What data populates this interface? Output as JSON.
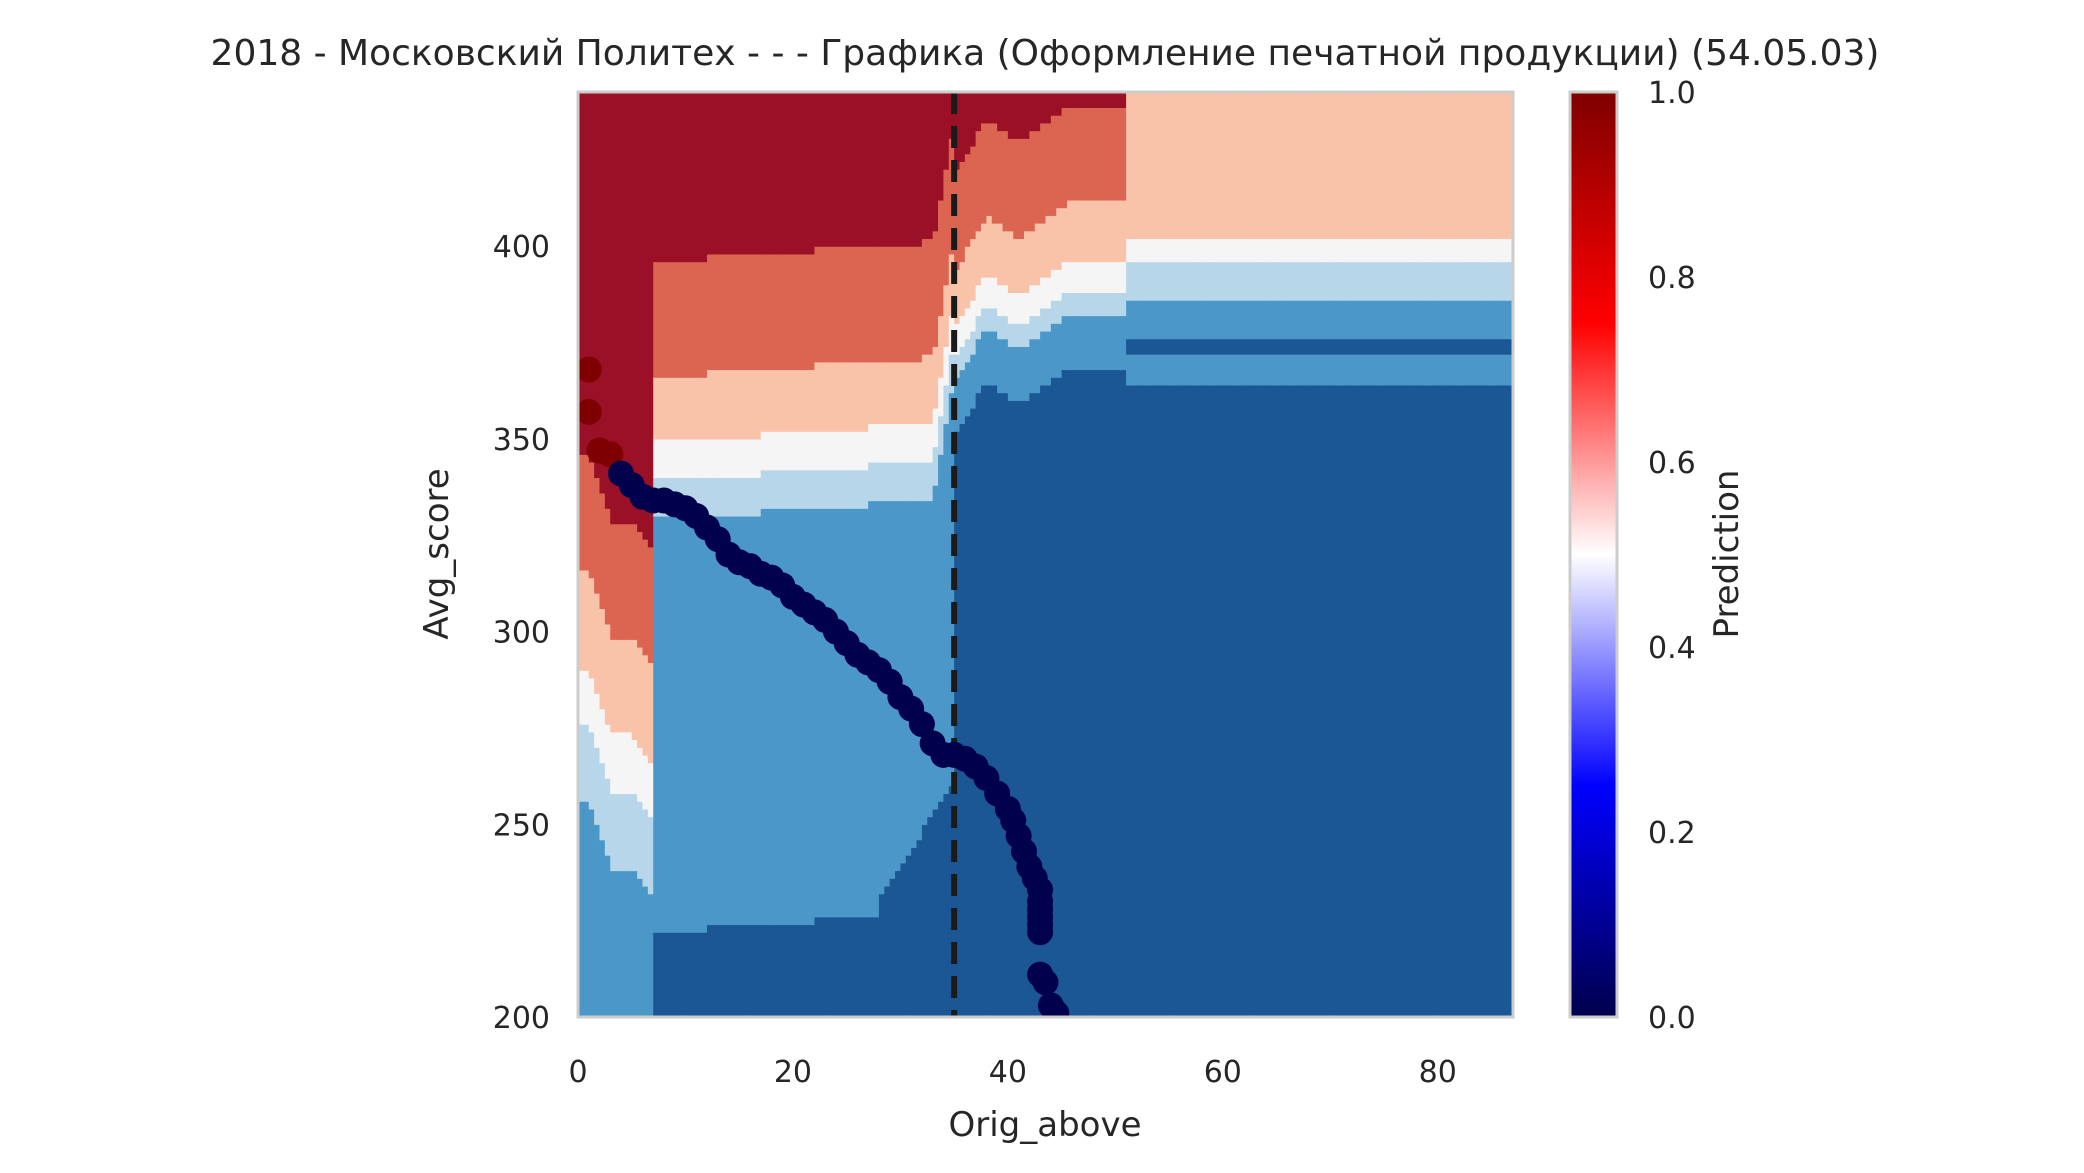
{
  "chart_data": {
    "type": "heatmap",
    "title": "2018 - Московский Политех - - - Графика (Оформление печатной продукции) (54.05.03)",
    "xlabel": "Orig_above",
    "ylabel": "Avg_score",
    "xlim": [
      0,
      87
    ],
    "ylim": [
      200,
      440
    ],
    "x_ticks": [
      "0",
      "20",
      "40",
      "60",
      "80"
    ],
    "y_ticks": [
      "200",
      "250",
      "300",
      "350",
      "400"
    ],
    "grid": false,
    "colormap": "seismic",
    "contour_colors": [
      "#1a5794",
      "#4b98c8",
      "#b8d6e9",
      "#f5f5f5",
      "#f9c3aa",
      "#db6551",
      "#9a1026"
    ],
    "colorbar": {
      "label": "Prediction",
      "range": [
        0,
        1
      ],
      "ticks": [
        "0.0",
        "0.2",
        "0.4",
        "0.6",
        "0.8",
        "1.0"
      ],
      "stops": [
        "#00004c",
        "#0000ff",
        "#ffffff",
        "#ff0000",
        "#7f0000"
      ]
    },
    "vline": {
      "x": 35,
      "style": "dashed",
      "color": "#1a1a1a"
    },
    "points": {
      "x": [
        1,
        1,
        2,
        3,
        4,
        5,
        6,
        7,
        8,
        9,
        10,
        11,
        12,
        13,
        14,
        15,
        16,
        17,
        18,
        19,
        20,
        21,
        22,
        23,
        24,
        25,
        26,
        27,
        28,
        29,
        30,
        31,
        32,
        33,
        34,
        35,
        36,
        37,
        38,
        39,
        40,
        40.5,
        41,
        41.5,
        42,
        42.5,
        43,
        43,
        43,
        43,
        43,
        43,
        43,
        43.5,
        44,
        44.5
      ],
      "y": [
        368,
        357,
        347,
        346,
        341,
        338,
        335,
        334,
        334,
        333,
        332,
        330,
        327,
        324,
        320,
        318,
        317,
        315,
        314,
        312,
        309,
        307,
        305,
        303,
        300,
        297,
        294,
        292,
        290,
        287,
        283,
        280,
        276,
        271,
        268,
        268,
        267,
        265,
        262,
        258,
        254,
        251,
        247,
        243,
        239,
        236,
        233,
        230,
        228,
        226,
        224,
        222,
        211,
        209,
        203,
        201
      ],
      "values": [
        1,
        1,
        1,
        1,
        0,
        0,
        0,
        0,
        0,
        0,
        0,
        0,
        0,
        0,
        0,
        0,
        0,
        0,
        0,
        0,
        0,
        0,
        0,
        0,
        0,
        0,
        0,
        0,
        0,
        0,
        0,
        0,
        0,
        0,
        0,
        0,
        0,
        0,
        0,
        0,
        0,
        0,
        0,
        0,
        0,
        0,
        0,
        0,
        0,
        0,
        0,
        0,
        0,
        0,
        0,
        0
      ]
    }
  }
}
